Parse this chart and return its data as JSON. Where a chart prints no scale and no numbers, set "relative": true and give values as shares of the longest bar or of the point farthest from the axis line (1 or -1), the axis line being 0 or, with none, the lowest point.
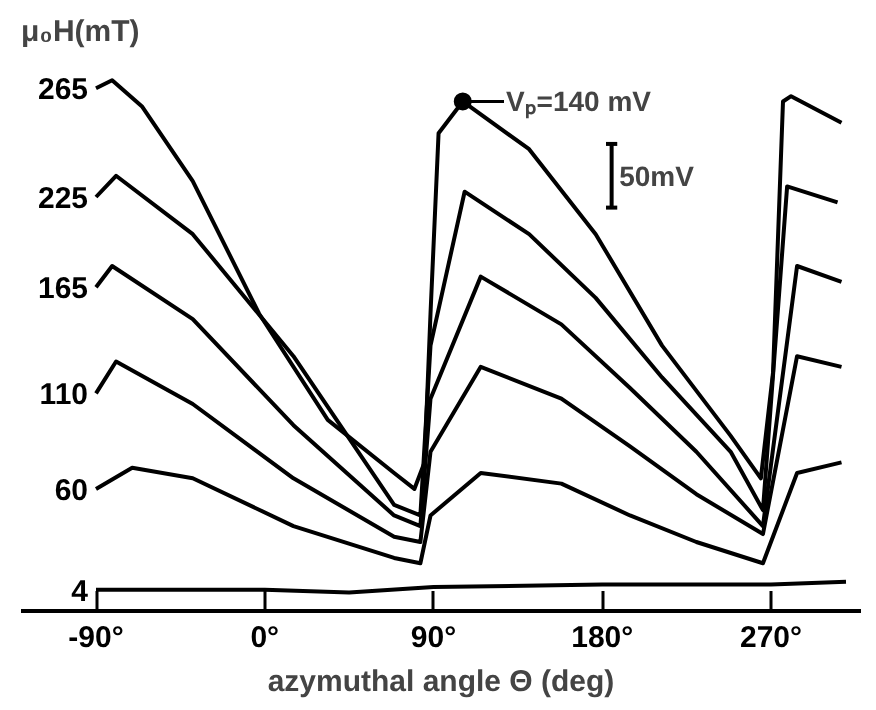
{
  "chart_data": {
    "type": "line",
    "relative": true,
    "legend_title": "μ₀H(mT)",
    "xlabel": "azymuthal angle Θ (deg)",
    "xlim": [
      -130,
      318
    ],
    "xticks": [
      {
        "value": -90,
        "label": "-90°"
      },
      {
        "value": 0,
        "label": "0°"
      },
      {
        "value": 90,
        "label": "90°"
      },
      {
        "value": 180,
        "label": "180°"
      },
      {
        "value": 270,
        "label": "270°"
      }
    ],
    "line_style": "solid",
    "marker": "none",
    "grid": false,
    "annotations": [
      {
        "text": "Vₚ=140 mV",
        "x": 105.6,
        "y": 0.96
      },
      "50mV"
    ],
    "series": [
      {
        "name": "265",
        "color": "#000000",
        "x": [
          -90,
          -81.4,
          -65.3,
          -38.4,
          -3.0,
          33.6,
          69.0,
          79.8,
          85.2,
          88.4,
          92.7,
          105.6,
          141.0,
          176.5,
          211.9,
          248.5,
          264.6,
          271.1,
          276.4,
          280.7,
          307.6
        ],
        "values": [
          0.985,
          1.0,
          0.95,
          0.81,
          0.56,
          0.36,
          0.26,
          0.23,
          0.28,
          0.56,
          0.9,
          0.96,
          0.87,
          0.71,
          0.5,
          0.33,
          0.25,
          0.45,
          0.96,
          0.97,
          0.92
        ]
      },
      {
        "name": "225",
        "color": "#000000",
        "x": [
          -90,
          -79.3,
          -38.4,
          15.3,
          69.0,
          83.0,
          88.4,
          106.6,
          141.0,
          176.5,
          211.9,
          248.5,
          265.7,
          278.6,
          305.5
        ],
        "values": [
          0.78,
          0.82,
          0.71,
          0.48,
          0.2,
          0.18,
          0.5,
          0.79,
          0.71,
          0.59,
          0.44,
          0.3,
          0.19,
          0.8,
          0.77
        ]
      },
      {
        "name": "165",
        "color": "#000000",
        "x": [
          -90,
          -81.4,
          -38.4,
          15.3,
          69.0,
          83.0,
          88.4,
          115.2,
          158.2,
          194.8,
          230.2,
          265.7,
          283.9,
          307.6
        ],
        "values": [
          0.61,
          0.65,
          0.55,
          0.35,
          0.18,
          0.16,
          0.4,
          0.63,
          0.54,
          0.42,
          0.3,
          0.16,
          0.65,
          0.62
        ]
      },
      {
        "name": "110",
        "color": "#000000",
        "x": [
          -90,
          -79.3,
          -38.4,
          15.3,
          69.0,
          83.0,
          88.4,
          115.2,
          158.2,
          194.8,
          230.2,
          265.7,
          283.9,
          307.6
        ],
        "values": [
          0.41,
          0.47,
          0.39,
          0.25,
          0.14,
          0.13,
          0.3,
          0.46,
          0.4,
          0.31,
          0.22,
          0.145,
          0.48,
          0.46
        ]
      },
      {
        "name": "60",
        "color": "#000000",
        "x": [
          -90,
          -70.7,
          -38.4,
          15.3,
          69.0,
          83.0,
          88.4,
          115.2,
          158.2,
          194.8,
          230.2,
          265.7,
          283.9,
          307.6
        ],
        "values": [
          0.23,
          0.27,
          0.25,
          0.16,
          0.1,
          0.09,
          0.18,
          0.26,
          0.24,
          0.18,
          0.13,
          0.09,
          0.26,
          0.28
        ]
      },
      {
        "name": "4",
        "color": "#000000",
        "x": [
          -90,
          0,
          45,
          90,
          180,
          270,
          310
        ],
        "values": [
          0.04,
          0.04,
          0.035,
          0.045,
          0.05,
          0.05,
          0.055
        ]
      }
    ]
  }
}
